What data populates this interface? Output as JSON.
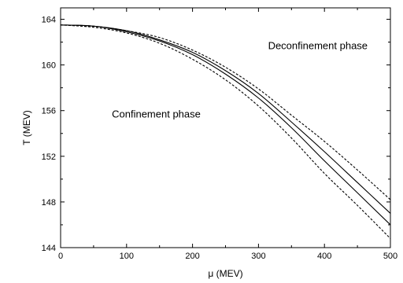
{
  "chart_data": {
    "type": "line",
    "xlabel": "μ (MEV)",
    "ylabel": "T (MEV)",
    "xlim": [
      0,
      500
    ],
    "ylim": [
      144,
      165
    ],
    "x_ticks": [
      0,
      100,
      200,
      300,
      400,
      500
    ],
    "y_ticks": [
      144,
      148,
      152,
      156,
      160,
      164
    ],
    "x_tick_labels": [
      "0",
      "100",
      "200",
      "300",
      "400",
      "500"
    ],
    "y_tick_labels": [
      "144",
      "148",
      "152",
      "156",
      "160",
      "164"
    ],
    "grid": false,
    "x": [
      0,
      50,
      100,
      150,
      200,
      250,
      300,
      350,
      400,
      450,
      500
    ],
    "series": [
      {
        "style": "dashed",
        "values": [
          163.5,
          163.4,
          163.0,
          162.4,
          161.3,
          159.8,
          157.9,
          155.6,
          153.3,
          150.8,
          148.2
        ]
      },
      {
        "style": "solid",
        "values": [
          163.5,
          163.4,
          163.0,
          162.2,
          161.1,
          159.5,
          157.5,
          155.0,
          152.4,
          149.7,
          147.0
        ]
      },
      {
        "style": "solid",
        "values": [
          163.5,
          163.4,
          162.9,
          162.1,
          160.9,
          159.2,
          157.1,
          154.5,
          151.6,
          148.8,
          146.0
        ]
      },
      {
        "style": "dashed",
        "values": [
          163.5,
          163.3,
          162.8,
          161.9,
          160.5,
          158.7,
          156.4,
          153.6,
          150.5,
          147.7,
          144.8
        ]
      }
    ],
    "annotations": [
      {
        "text": "Deconfinement phase",
        "x": 390,
        "y": 161.4
      },
      {
        "text": "Confinement phase",
        "x": 145,
        "y": 155.4
      }
    ]
  }
}
